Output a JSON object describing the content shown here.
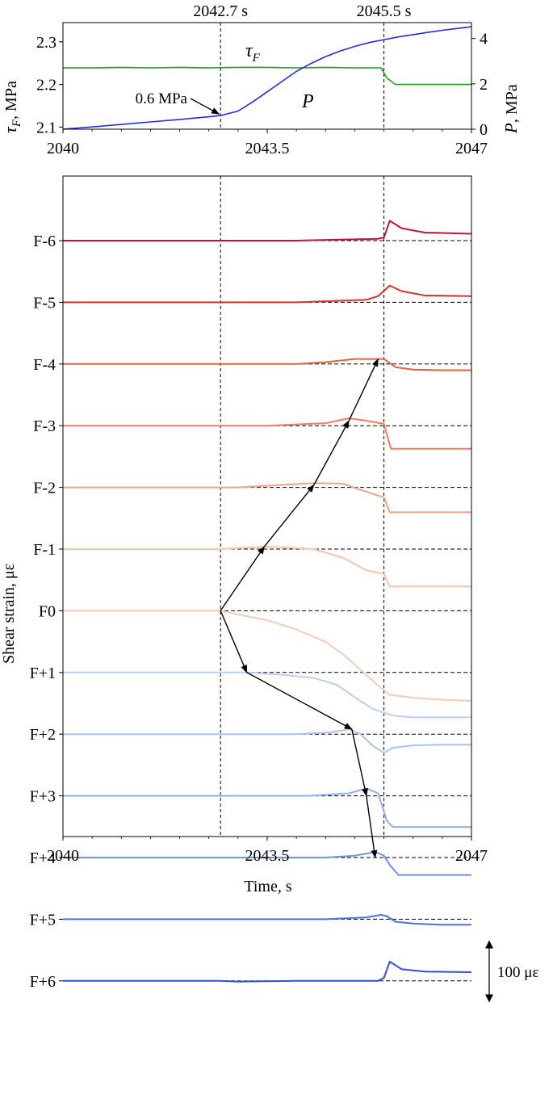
{
  "chart_data": [
    {
      "type": "line",
      "xlabel": "",
      "ylabel_left": "τF , MPa",
      "ylabel_left_symbol": "τ",
      "ylabel_left_sub": "F",
      "ylabel_left_unit": ", MPa",
      "ylabel_right": "P, MPa",
      "ylabel_right_symbol": "P",
      "ylabel_right_unit": ", MPa",
      "xlim": [
        2040,
        2047
      ],
      "ylim_left": [
        2.095,
        2.345
      ],
      "ylim_right": [
        0,
        4.7
      ],
      "xticks": [
        "2040",
        "2043.5",
        "2047"
      ],
      "yticks_left": [
        "2.1",
        "2.2",
        "2.3"
      ],
      "yticks_right": [
        "0",
        "2",
        "4"
      ],
      "grid": false,
      "vlines": [
        {
          "x": 2042.7,
          "label": "2042.7 s"
        },
        {
          "x": 2045.5,
          "label": "2045.5 s"
        }
      ],
      "annotations": [
        {
          "text": "0.6 MPa",
          "x": 2042.7,
          "y_right": 0.6
        },
        {
          "text": "τF",
          "symbol": "τ",
          "sub": "F",
          "series": "τF"
        },
        {
          "text": "P",
          "series": "P"
        }
      ],
      "series": [
        {
          "name": "τF",
          "axis": "left",
          "color": "#1aa21a",
          "x": [
            2040,
            2040.5,
            2041,
            2041.5,
            2042,
            2042.5,
            2043,
            2043.5,
            2044,
            2044.5,
            2045,
            2045.45,
            2045.55,
            2045.7,
            2046,
            2046.5,
            2047
          ],
          "y": [
            2.239,
            2.239,
            2.24,
            2.239,
            2.24,
            2.239,
            2.24,
            2.24,
            2.239,
            2.24,
            2.239,
            2.239,
            2.215,
            2.2,
            2.2,
            2.2,
            2.2
          ]
        },
        {
          "name": "P",
          "axis": "right",
          "color": "#1f2ee6",
          "x": [
            2040,
            2040.5,
            2041,
            2041.5,
            2042,
            2042.5,
            2042.7,
            2043,
            2043.25,
            2043.5,
            2043.75,
            2044,
            2044.25,
            2044.5,
            2044.75,
            2045,
            2045.25,
            2045.5,
            2045.75,
            2046,
            2046.25,
            2046.5,
            2046.75,
            2047
          ],
          "y": [
            0.0,
            0.1,
            0.21,
            0.32,
            0.43,
            0.55,
            0.6,
            0.8,
            1.2,
            1.65,
            2.1,
            2.55,
            2.9,
            3.2,
            3.45,
            3.65,
            3.82,
            3.95,
            4.07,
            4.17,
            4.27,
            4.36,
            4.44,
            4.52
          ]
        }
      ]
    },
    {
      "type": "line",
      "xlabel": "Time, s",
      "ylabel": "Shear strain, με",
      "xlim": [
        2040,
        2047
      ],
      "xticks": [
        "2040",
        "2043.5",
        "2047"
      ],
      "grid": false,
      "vlines": [
        {
          "x": 2042.7
        },
        {
          "x": 2045.5
        }
      ],
      "scale_bar": {
        "label": "100 με",
        "value": 100
      },
      "rows": [
        "F-6",
        "F-5",
        "F-4",
        "F-3",
        "F-2",
        "F-1",
        "F0",
        "F+1",
        "F+2",
        "F+3",
        "F+4",
        "F+5",
        "F+6"
      ],
      "arrows": [
        {
          "from": [
            "F0",
            2042.7,
            0
          ],
          "to": [
            "F-1",
            2043.45,
            4
          ]
        },
        {
          "from": [
            "F-1",
            2043.45,
            4
          ],
          "to": [
            "F-2",
            2044.3,
            4
          ]
        },
        {
          "from": [
            "F-2",
            2044.3,
            4
          ],
          "to": [
            "F-3",
            2044.9,
            8
          ]
        },
        {
          "from": [
            "F-3",
            2044.9,
            8
          ],
          "to": [
            "F-4",
            2045.4,
            8
          ]
        },
        {
          "from": [
            "F0",
            2042.7,
            0
          ],
          "to": [
            "F+1",
            2043.15,
            0
          ]
        },
        {
          "from": [
            "F+1",
            2043.15,
            0
          ],
          "to": [
            "F+2",
            2044.95,
            8
          ]
        },
        {
          "from": [
            "F+2",
            2044.95,
            8
          ],
          "to": [
            "F+3",
            2045.2,
            0
          ]
        },
        {
          "from": [
            "F+3",
            2045.2,
            0
          ],
          "to": [
            "F+4",
            2045.35,
            0
          ]
        }
      ],
      "series": [
        {
          "name": "F-6",
          "color": "#c41230",
          "x": [
            2040,
            2044,
            2045.4,
            2045.5,
            2045.6,
            2045.8,
            2046.2,
            2047
          ],
          "y": [
            0,
            0,
            3,
            5,
            32,
            20,
            13,
            11
          ]
        },
        {
          "name": "F-5",
          "color": "#d9312b",
          "x": [
            2040,
            2044,
            2045.2,
            2045.4,
            2045.6,
            2045.8,
            2046.2,
            2047
          ],
          "y": [
            0,
            0,
            4,
            10,
            27,
            18,
            11,
            10
          ]
        },
        {
          "name": "F-4",
          "color": "#e8603f",
          "x": [
            2040,
            2042.7,
            2044,
            2044.5,
            2045,
            2045.5,
            2045.7,
            2046,
            2046.5,
            2047
          ],
          "y": [
            0,
            0,
            0,
            3,
            8,
            8,
            -5,
            -9,
            -10,
            -10
          ]
        },
        {
          "name": "F-3",
          "color": "#f07d5e",
          "x": [
            2040,
            2043.5,
            2044.5,
            2044.9,
            2045.2,
            2045.5,
            2045.62,
            2046,
            2047
          ],
          "y": [
            0,
            0,
            4,
            12,
            8,
            3,
            -37,
            -37,
            -37
          ]
        },
        {
          "name": "F-2",
          "color": "#f5a285",
          "x": [
            2040,
            2043,
            2044.3,
            2044.8,
            2045.1,
            2045.5,
            2045.6,
            2046,
            2046.5,
            2047
          ],
          "y": [
            0,
            0,
            7,
            6,
            -4,
            -16,
            -40,
            -40,
            -40,
            -40
          ]
        },
        {
          "name": "F-1",
          "color": "#f9c2aa",
          "x": [
            2040,
            2042.7,
            2043.5,
            2044.3,
            2044.8,
            2045.2,
            2045.5,
            2045.6,
            2046,
            2047
          ],
          "y": [
            0,
            0,
            4,
            0,
            -14,
            -34,
            -40,
            -60,
            -60,
            -60
          ]
        },
        {
          "name": "F0",
          "color": "#f5cbb4",
          "x": [
            2040,
            2042.7,
            2043,
            2043.5,
            2044,
            2044.5,
            2044.8,
            2045.1,
            2045.4,
            2045.6,
            2046,
            2046.5,
            2047
          ],
          "y": [
            0,
            0,
            -6,
            -15,
            -30,
            -50,
            -70,
            -95,
            -120,
            -135,
            -140,
            -143,
            -145
          ]
        },
        {
          "name": "F+1",
          "color": "#b9d0f5",
          "x": [
            2040,
            2043.15,
            2043.8,
            2044.3,
            2044.7,
            2045,
            2045.3,
            2045.5,
            2045.7,
            2046,
            2046.5,
            2047
          ],
          "y": [
            0,
            0,
            -4,
            -9,
            -20,
            -40,
            -58,
            -65,
            -70,
            -72,
            -72,
            -72
          ]
        },
        {
          "name": "F+2",
          "color": "#a9c3f3",
          "x": [
            2040,
            2044,
            2044.6,
            2044.9,
            2045.1,
            2045.3,
            2045.5,
            2045.65,
            2046,
            2046.5,
            2047
          ],
          "y": [
            0,
            0,
            3,
            8,
            0,
            -18,
            -30,
            -22,
            -18,
            -17,
            -17
          ]
        },
        {
          "name": "F+3",
          "color": "#8fb0f0",
          "x": [
            2040,
            2044.2,
            2044.9,
            2045.2,
            2045.4,
            2045.55,
            2045.65,
            2046,
            2047
          ],
          "y": [
            0,
            0,
            4,
            12,
            4,
            -40,
            -50,
            -50,
            -50
          ]
        },
        {
          "name": "F+4",
          "color": "#6e93ec",
          "x": [
            2040,
            2044.5,
            2045,
            2045.35,
            2045.5,
            2045.6,
            2045.75,
            2046,
            2047
          ],
          "y": [
            0,
            0,
            3,
            9,
            3,
            -12,
            -28,
            -28,
            -28
          ]
        },
        {
          "name": "F+5",
          "color": "#4a73e6",
          "x": [
            2040,
            2044.5,
            2045.2,
            2045.45,
            2045.55,
            2045.7,
            2046,
            2046.5,
            2047
          ],
          "y": [
            0,
            0,
            3,
            7,
            5,
            -4,
            -7,
            -9,
            -9
          ]
        },
        {
          "name": "F+6",
          "color": "#2e4fd9",
          "x": [
            2040,
            2042.7,
            2043,
            2044,
            2045.4,
            2045.5,
            2045.6,
            2045.8,
            2046.2,
            2047
          ],
          "y": [
            0,
            0,
            -1,
            0,
            0,
            5,
            31,
            19,
            15,
            14
          ]
        }
      ]
    }
  ]
}
